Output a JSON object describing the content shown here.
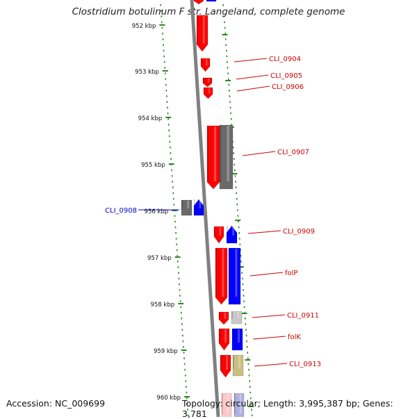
{
  "title": "Clostridium botulinum F str. Langeland, complete genome",
  "footer": {
    "accession": "Accession: NC_009699",
    "stats": "Topology: circular; Length: 3,995,387 bp; Genes: 3,781"
  },
  "ruler": {
    "ticks": [
      "952 kbp",
      "953 kbp",
      "954 kbp",
      "955 kbp",
      "956 kbp",
      "957 kbp",
      "958 kbp",
      "959 kbp",
      "960 kbp"
    ]
  },
  "genes": [
    {
      "label": "CLI_0904",
      "color": "#cc0000"
    },
    {
      "label": "CLI_0905",
      "color": "#cc0000"
    },
    {
      "label": "CLI_0906",
      "color": "#cc0000"
    },
    {
      "label": "CLI_0907",
      "color": "#cc0000"
    },
    {
      "label": "CLI_0908",
      "color": "#0000cc"
    },
    {
      "label": "CLI_0909",
      "color": "#cc0000"
    },
    {
      "label": "folP",
      "color": "#cc0000"
    },
    {
      "label": "CLI_0911",
      "color": "#cc0000"
    },
    {
      "label": "folK",
      "color": "#cc0000"
    },
    {
      "label": "CLI_0913",
      "color": "#cc0000"
    }
  ],
  "colors": {
    "forward_feature": "#ff0000",
    "reverse_feature": "#0000ff",
    "gray_feature": "#6a6a6a",
    "light_feature": "#c8c8c8",
    "olive_feature": "#c8bf80",
    "dot_green": "#2a8a1e",
    "backbone": "#808080"
  }
}
